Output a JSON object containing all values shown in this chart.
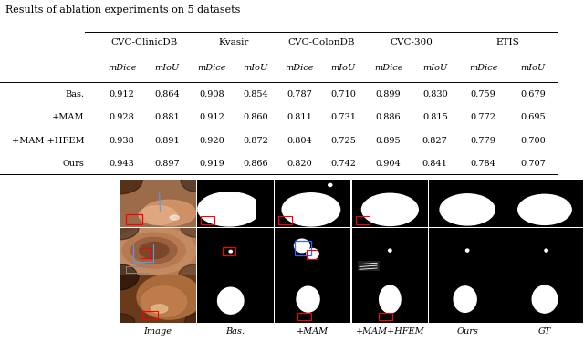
{
  "title": "Results of ablation experiments on 5 datasets",
  "col_groups": [
    "CVC-ClinicDB",
    "Kvasir",
    "CVC-ColonDB",
    "CVC-300",
    "ETIS"
  ],
  "col_metrics": [
    "mDice",
    "mIoU",
    "mDice",
    "mIoU",
    "mDice",
    "mIoU",
    "mDice",
    "mIoU",
    "mDice",
    "mIoU"
  ],
  "row_labels": [
    "Bas.",
    "+MAM",
    "+MAM +HFEM",
    "Ours"
  ],
  "table_data": [
    [
      0.912,
      0.864,
      0.908,
      0.854,
      0.787,
      0.71,
      0.899,
      0.83,
      0.759,
      0.679
    ],
    [
      0.928,
      0.881,
      0.912,
      0.86,
      0.811,
      0.731,
      0.886,
      0.815,
      0.772,
      0.695
    ],
    [
      0.938,
      0.891,
      0.92,
      0.872,
      0.804,
      0.725,
      0.895,
      0.827,
      0.779,
      0.7
    ],
    [
      0.943,
      0.897,
      0.919,
      0.866,
      0.82,
      0.742,
      0.904,
      0.841,
      0.784,
      0.707
    ]
  ],
  "image_labels": [
    "Image",
    "Bas.",
    "+MAM",
    "+MAM+HFEM",
    "Ours",
    "GT"
  ],
  "n_image_cols": 6,
  "n_image_rows": 3,
  "bg_color": "#ffffff",
  "text_color": "#000000",
  "table_font_size": 7.0,
  "title_font_size": 8.0,
  "header_font_size": 7.5
}
